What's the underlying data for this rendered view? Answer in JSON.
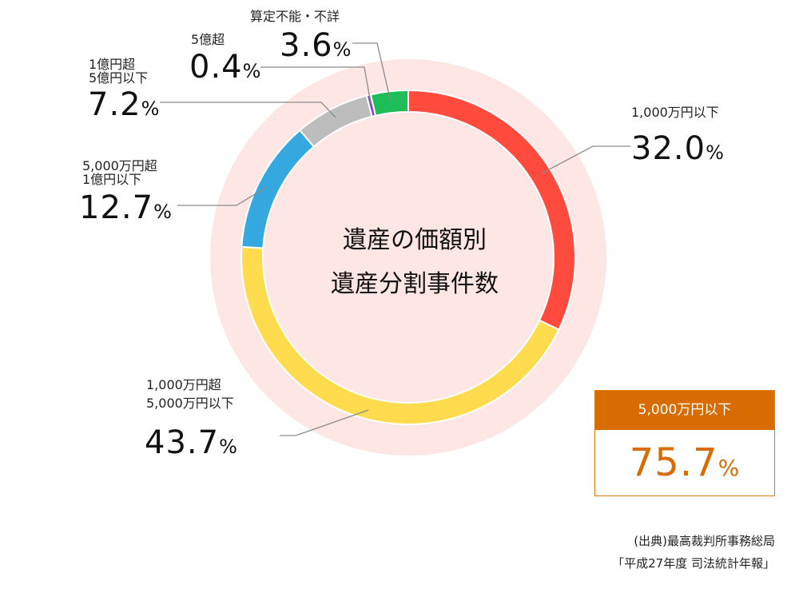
{
  "chart_data": {
    "type": "donut",
    "title_lines": [
      "遺産の価額別",
      "遺産分割事件数"
    ],
    "unit": "%",
    "series": [
      {
        "category_lines": [
          "1,000万円以下"
        ],
        "value": 32.0,
        "value_text": "32.0",
        "color": "#ff4b3e"
      },
      {
        "category_lines": [
          "1,000万円超",
          "5,000万円以下"
        ],
        "value": 43.7,
        "value_text": "43.7",
        "color": "#ffdc4e"
      },
      {
        "category_lines": [
          "5,000万円超",
          "1億円以下"
        ],
        "value": 12.7,
        "value_text": "12.7",
        "color": "#35a8e0"
      },
      {
        "category_lines": [
          "1億円超",
          "5億円以下"
        ],
        "value": 7.2,
        "value_text": "7.2",
        "color": "#bdbdbd"
      },
      {
        "category_lines": [
          "5億超"
        ],
        "value": 0.4,
        "value_text": "0.4",
        "color": "#7b45d9"
      },
      {
        "category_lines": [
          "算定不能・不詳"
        ],
        "value": 3.6,
        "value_text": "3.6",
        "color": "#1fbd5a"
      }
    ],
    "outer_ring_color": "#fde6e4",
    "summary": {
      "label": "5,000万円以下",
      "value": 75.7,
      "value_text": "75.7",
      "unit": "%",
      "color": "#d96c00"
    },
    "source_lines": [
      "(出典)最高裁判所事務総局",
      "「平成27年度 司法統計年報」"
    ]
  }
}
